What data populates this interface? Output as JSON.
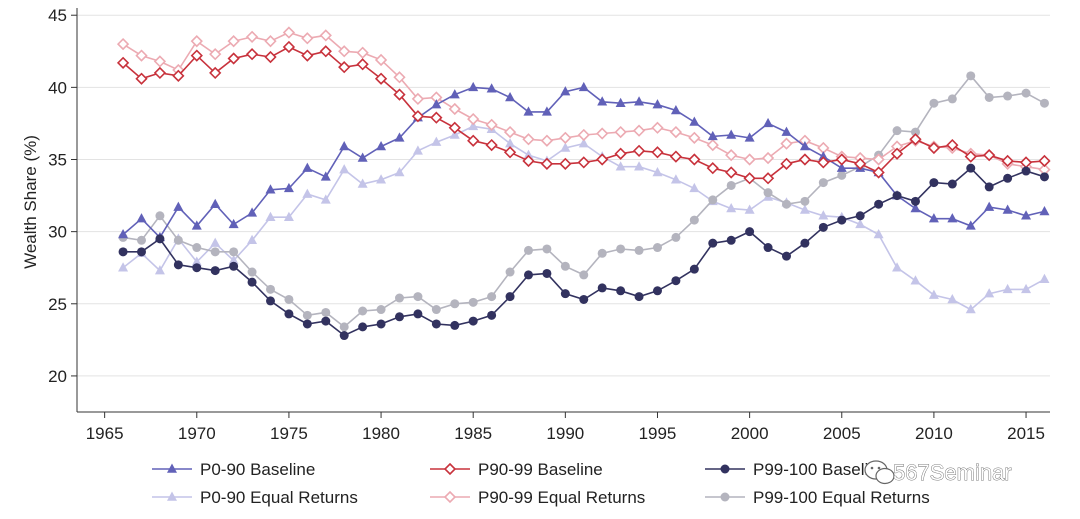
{
  "chart_data": {
    "type": "line",
    "title": "",
    "xlabel": "",
    "ylabel": "Wealth Share (%)",
    "xlim": [
      1963.5,
      2016.3
    ],
    "ylim": [
      17.5,
      45.5
    ],
    "xticks": [
      1965,
      1970,
      1975,
      1980,
      1985,
      1990,
      1995,
      2000,
      2005,
      2010,
      2015
    ],
    "yticks": [
      20,
      25,
      30,
      35,
      40,
      45
    ],
    "grid": true,
    "legend_position": "bottom",
    "x": [
      1966,
      1967,
      1968,
      1969,
      1970,
      1971,
      1972,
      1973,
      1974,
      1975,
      1976,
      1977,
      1978,
      1979,
      1980,
      1981,
      1982,
      1983,
      1984,
      1985,
      1986,
      1987,
      1988,
      1989,
      1990,
      1991,
      1992,
      1993,
      1994,
      1995,
      1996,
      1997,
      1998,
      1999,
      2000,
      2001,
      2002,
      2003,
      2004,
      2005,
      2006,
      2007,
      2008,
      2009,
      2010,
      2011,
      2012,
      2013,
      2014,
      2015,
      2016
    ],
    "series": [
      {
        "name": "P0-90 Baseline",
        "color": "#6161b8",
        "marker": "triangle",
        "values": [
          29.8,
          30.9,
          29.6,
          31.7,
          30.4,
          31.9,
          30.5,
          31.3,
          32.9,
          33.0,
          34.4,
          33.8,
          35.9,
          35.1,
          35.9,
          36.5,
          37.9,
          38.8,
          39.5,
          40.0,
          39.9,
          39.3,
          38.3,
          38.3,
          39.7,
          40.0,
          39.0,
          38.9,
          39.0,
          38.8,
          38.4,
          37.6,
          36.6,
          36.7,
          36.5,
          37.5,
          36.9,
          35.9,
          35.2,
          34.4,
          34.4,
          34.1,
          32.5,
          31.6,
          30.9,
          30.9,
          30.4,
          31.7,
          31.5,
          31.1,
          31.4
        ]
      },
      {
        "name": "P0-90 Equal Returns",
        "color": "#c4c4e8",
        "marker": "triangle",
        "values": [
          27.5,
          28.5,
          27.3,
          29.5,
          27.9,
          29.2,
          28.0,
          29.4,
          31.0,
          31.0,
          32.6,
          32.2,
          34.3,
          33.3,
          33.6,
          34.1,
          35.6,
          36.2,
          36.7,
          37.3,
          37.1,
          36.1,
          35.3,
          34.9,
          35.8,
          36.1,
          35.2,
          34.5,
          34.5,
          34.1,
          33.6,
          33.0,
          32.1,
          31.6,
          31.5,
          32.4,
          32.0,
          31.5,
          31.1,
          31.0,
          30.5,
          29.8,
          27.5,
          26.6,
          25.6,
          25.3,
          24.6,
          25.7,
          26.0,
          26.0,
          26.7
        ]
      },
      {
        "name": "P90-99 Baseline",
        "color": "#c8323c",
        "marker": "diamond",
        "values": [
          41.7,
          40.6,
          41.0,
          40.8,
          42.2,
          41.0,
          42.0,
          42.3,
          42.1,
          42.8,
          42.2,
          42.5,
          41.4,
          41.6,
          40.6,
          39.5,
          38.0,
          37.9,
          37.2,
          36.3,
          36.0,
          35.5,
          34.9,
          34.7,
          34.7,
          34.8,
          35.0,
          35.4,
          35.6,
          35.5,
          35.2,
          35.0,
          34.4,
          34.1,
          33.7,
          33.7,
          34.7,
          35.0,
          34.8,
          35.0,
          34.7,
          34.1,
          35.4,
          36.4,
          35.8,
          36.0,
          35.2,
          35.3,
          34.9,
          34.8,
          34.9
        ]
      },
      {
        "name": "P90-99 Equal Returns",
        "color": "#ecaab2",
        "marker": "diamond",
        "values": [
          43.0,
          42.2,
          41.8,
          41.2,
          43.2,
          42.3,
          43.2,
          43.5,
          43.2,
          43.8,
          43.4,
          43.6,
          42.5,
          42.4,
          41.9,
          40.7,
          39.2,
          39.3,
          38.5,
          37.8,
          37.4,
          36.9,
          36.4,
          36.3,
          36.5,
          36.7,
          36.8,
          36.9,
          37.0,
          37.2,
          36.9,
          36.5,
          36.0,
          35.3,
          35.0,
          35.1,
          36.1,
          36.3,
          35.8,
          35.2,
          35.1,
          35.0,
          35.9,
          36.3,
          35.9,
          35.8,
          35.4,
          35.3,
          34.7,
          34.5,
          34.3
        ]
      },
      {
        "name": "P99-100 Baseline",
        "color": "#32325f",
        "marker": "circle",
        "values": [
          28.6,
          28.6,
          29.5,
          27.7,
          27.5,
          27.3,
          27.6,
          26.5,
          25.2,
          24.3,
          23.6,
          23.8,
          22.8,
          23.4,
          23.6,
          24.1,
          24.3,
          23.6,
          23.5,
          23.8,
          24.2,
          25.5,
          27.0,
          27.1,
          25.7,
          25.3,
          26.1,
          25.9,
          25.5,
          25.9,
          26.6,
          27.4,
          29.2,
          29.4,
          30.0,
          28.9,
          28.3,
          29.2,
          30.3,
          30.8,
          31.1,
          31.9,
          32.5,
          32.1,
          33.4,
          33.3,
          34.4,
          33.1,
          33.7,
          34.2,
          33.8
        ]
      },
      {
        "name": "P99-100 Equal Returns",
        "color": "#b4b4be",
        "marker": "circle",
        "values": [
          29.6,
          29.4,
          31.1,
          29.4,
          28.9,
          28.6,
          28.6,
          27.2,
          26.0,
          25.3,
          24.2,
          24.4,
          23.4,
          24.5,
          24.6,
          25.4,
          25.5,
          24.6,
          25.0,
          25.1,
          25.5,
          27.2,
          28.7,
          28.8,
          27.6,
          27.0,
          28.5,
          28.8,
          28.7,
          28.9,
          29.6,
          30.8,
          32.2,
          33.2,
          33.7,
          32.7,
          31.9,
          32.1,
          33.4,
          33.9,
          34.5,
          35.3,
          37.0,
          36.9,
          38.9,
          39.2,
          40.8,
          39.3,
          39.4,
          39.6,
          38.9
        ]
      }
    ]
  },
  "watermark": {
    "text": "567Seminar"
  }
}
